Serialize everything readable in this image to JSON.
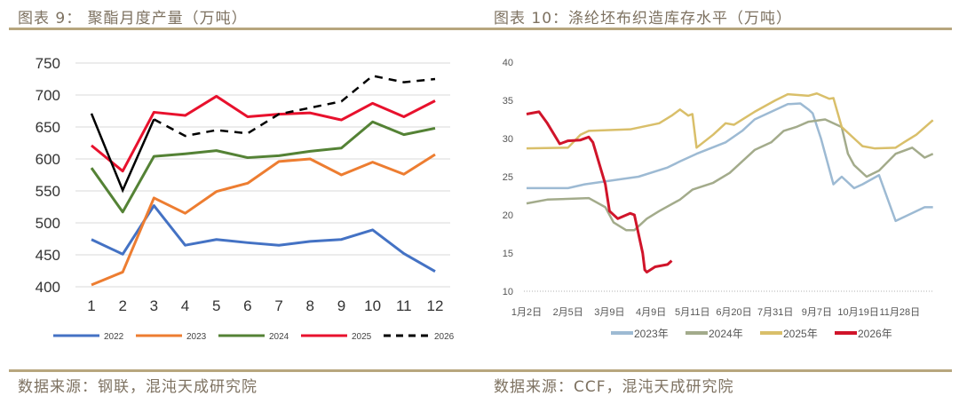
{
  "header": {
    "left_title": "图表 9： 聚酯月度产量（万吨）",
    "right_title": "图表 10：涤纶坯布织造库存水平（万吨）"
  },
  "footer": {
    "left_source": "数据来源：钢联，混沌天成研究院",
    "right_source": "数据来源：CCF，混沌天成研究院"
  },
  "chart_data": [
    {
      "type": "line",
      "title": "聚酯月度产量（万吨）",
      "xlabel": "",
      "ylabel": "",
      "categories": [
        "1",
        "2",
        "3",
        "4",
        "5",
        "6",
        "7",
        "8",
        "9",
        "10",
        "11",
        "12"
      ],
      "ylim": [
        400,
        750
      ],
      "yticks": [
        "400",
        "450",
        "500",
        "550",
        "600",
        "650",
        "700",
        "750"
      ],
      "grid": true,
      "legend": "bottom",
      "series": [
        {
          "name": "2022",
          "color": "#4472c4",
          "dash": false,
          "values": [
            474,
            451,
            527,
            465,
            474,
            469,
            465,
            471,
            474,
            489,
            452,
            424
          ]
        },
        {
          "name": "2023",
          "color": "#ed7d31",
          "dash": false,
          "values": [
            403,
            423,
            539,
            515,
            549,
            562,
            596,
            600,
            575,
            595,
            576,
            607
          ]
        },
        {
          "name": "2024",
          "color": "#548235",
          "dash": false,
          "values": [
            586,
            517,
            604,
            608,
            613,
            602,
            605,
            612,
            617,
            658,
            638,
            648
          ]
        },
        {
          "name": "2025",
          "color": "#e8112d",
          "dash": false,
          "values": [
            621,
            581,
            673,
            668,
            698,
            666,
            670,
            672,
            661,
            687,
            666,
            691
          ]
        },
        {
          "name": "2026",
          "color": "#000000",
          "dash": true,
          "solid_until_index": 2,
          "values": [
            671,
            551,
            662,
            636,
            645,
            640,
            670,
            680,
            690,
            730,
            720,
            725
          ]
        }
      ]
    },
    {
      "type": "line",
      "title": "涤纶坯布织造库存水平（万吨）",
      "xlabel": "",
      "ylabel": "",
      "categories": [
        "1月2日",
        "2月5日",
        "3月9日",
        "4月9日",
        "5月11日",
        "6月20日",
        "7月31日",
        "9月7日",
        "10月19日",
        "11月28日"
      ],
      "x_unit": "category index (0 = 1月2日)",
      "ylim": [
        10,
        40
      ],
      "yticks": [
        "10",
        "15",
        "20",
        "25",
        "30",
        "35",
        "40"
      ],
      "grid": false,
      "legend": "bottom",
      "series": [
        {
          "name": "2023年",
          "color": "#9dbad3",
          "points": [
            [
              0,
              23.5
            ],
            [
              1,
              23.5
            ],
            [
              1.4,
              24
            ],
            [
              2.3,
              24.7
            ],
            [
              2.7,
              25
            ],
            [
              3.4,
              26.2
            ],
            [
              3.7,
              27
            ],
            [
              4.1,
              28
            ],
            [
              4.8,
              29.5
            ],
            [
              5.2,
              31
            ],
            [
              5.5,
              32.5
            ],
            [
              5.9,
              33.5
            ],
            [
              6.3,
              34.5
            ],
            [
              6.6,
              34.6
            ],
            [
              6.8,
              33.8
            ],
            [
              6.9,
              33.3
            ],
            [
              7.1,
              30
            ],
            [
              7.4,
              24
            ],
            [
              7.6,
              25
            ],
            [
              7.9,
              23.5
            ],
            [
              8.1,
              24
            ],
            [
              8.5,
              25.2
            ],
            [
              8.9,
              19.2
            ],
            [
              9.6,
              21
            ],
            [
              9.8,
              21
            ]
          ]
        },
        {
          "name": "2024年",
          "color": "#a3ab8b",
          "points": [
            [
              0,
              21.5
            ],
            [
              0.5,
              22
            ],
            [
              1.5,
              22.2
            ],
            [
              1.9,
              21
            ],
            [
              2.1,
              19
            ],
            [
              2.4,
              18
            ],
            [
              2.6,
              18
            ],
            [
              2.9,
              19.5
            ],
            [
              3.2,
              20.5
            ],
            [
              3.7,
              22
            ],
            [
              4,
              23.3
            ],
            [
              4.5,
              24.2
            ],
            [
              4.9,
              25.5
            ],
            [
              5.2,
              27
            ],
            [
              5.5,
              28.5
            ],
            [
              5.9,
              29.5
            ],
            [
              6.2,
              31
            ],
            [
              6.5,
              31.5
            ],
            [
              6.8,
              32.2
            ],
            [
              7.2,
              32.5
            ],
            [
              7.6,
              31.5
            ],
            [
              7.75,
              28
            ],
            [
              7.9,
              26.5
            ],
            [
              8.2,
              25
            ],
            [
              8.5,
              25.8
            ],
            [
              8.9,
              28
            ],
            [
              9.3,
              28.8
            ],
            [
              9.6,
              27.5
            ],
            [
              9.8,
              28
            ]
          ]
        },
        {
          "name": "2025年",
          "color": "#d9bf6a",
          "points": [
            [
              0,
              28.7
            ],
            [
              1,
              28.8
            ],
            [
              1.3,
              30.5
            ],
            [
              1.5,
              31
            ],
            [
              2.5,
              31.2
            ],
            [
              3.2,
              32
            ],
            [
              3.5,
              33
            ],
            [
              3.7,
              33.8
            ],
            [
              3.9,
              33
            ],
            [
              4.0,
              33.2
            ],
            [
              4.1,
              28.8
            ],
            [
              4.5,
              30.5
            ],
            [
              4.8,
              32
            ],
            [
              5,
              31.8
            ],
            [
              5.5,
              33.5
            ],
            [
              6,
              35
            ],
            [
              6.3,
              35.8
            ],
            [
              6.8,
              35.6
            ],
            [
              7,
              35.9
            ],
            [
              7.3,
              35.2
            ],
            [
              7.4,
              35.3
            ],
            [
              7.6,
              31.5
            ],
            [
              7.9,
              30
            ],
            [
              8.1,
              29
            ],
            [
              8.4,
              28.7
            ],
            [
              8.9,
              28.8
            ],
            [
              9.1,
              29.5
            ],
            [
              9.4,
              30.5
            ],
            [
              9.8,
              32.4
            ]
          ]
        },
        {
          "name": "2026年",
          "color": "#d0142a",
          "points": [
            [
              0,
              33.2
            ],
            [
              0.3,
              33.5
            ],
            [
              0.5,
              32
            ],
            [
              0.8,
              29.3
            ],
            [
              1.0,
              29.7
            ],
            [
              1.3,
              29.8
            ],
            [
              1.5,
              30.2
            ],
            [
              1.6,
              29.5
            ],
            [
              1.9,
              24
            ],
            [
              2.0,
              20.5
            ],
            [
              2.2,
              19.5
            ],
            [
              2.5,
              20.2
            ],
            [
              2.6,
              20
            ],
            [
              2.8,
              15
            ],
            [
              2.85,
              12.8
            ],
            [
              2.9,
              12.5
            ],
            [
              3.1,
              13.2
            ],
            [
              3.4,
              13.5
            ],
            [
              3.5,
              14
            ]
          ]
        }
      ]
    }
  ]
}
